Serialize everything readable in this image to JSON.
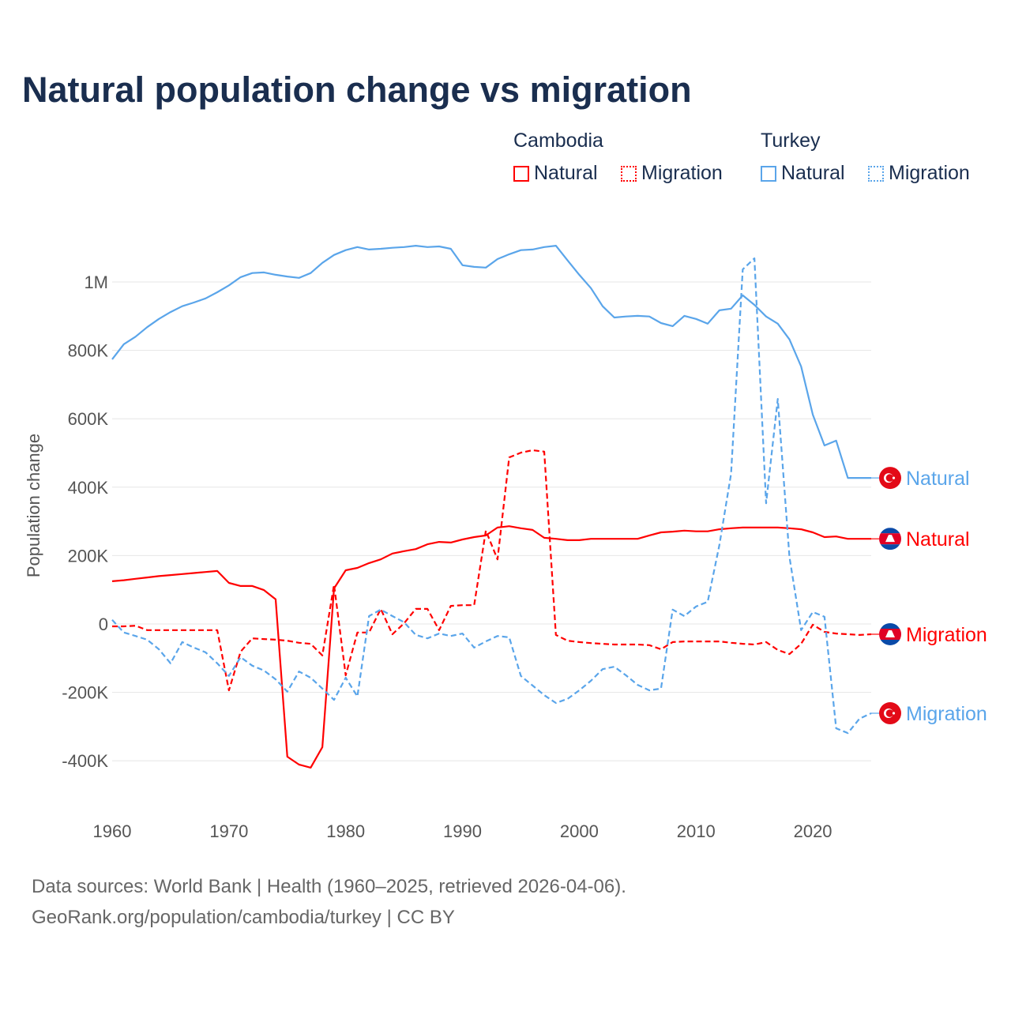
{
  "title": "Natural population change vs migration",
  "legend": {
    "groups": [
      {
        "name": "Cambodia",
        "items": [
          {
            "label": "Natural",
            "style": "solid"
          },
          {
            "label": "Migration",
            "style": "dotted"
          }
        ],
        "color": "#ff0000"
      },
      {
        "name": "Turkey",
        "items": [
          {
            "label": "Natural",
            "style": "solid"
          },
          {
            "label": "Migration",
            "style": "dotted"
          }
        ],
        "color": "#5aa5ea"
      }
    ]
  },
  "footer": {
    "line1": "Data sources: World Bank | Health (1960–2025, retrieved 2026-04-06).",
    "line2": "GeoRank.org/population/cambodia/turkey | CC BY"
  },
  "chart_data": {
    "type": "line",
    "title": "Natural population change vs migration",
    "xlabel": "",
    "ylabel": "Population change",
    "xlim": [
      1960,
      2025
    ],
    "ylim": [
      -400000,
      1100000
    ],
    "x_ticks": [
      1960,
      1970,
      1980,
      1990,
      2000,
      2010,
      2020
    ],
    "x_tick_labels": [
      "1960",
      "1970",
      "1980",
      "1990",
      "2000",
      "2010",
      "2020"
    ],
    "y_ticks": [
      -400000,
      -200000,
      0,
      200000,
      400000,
      600000,
      800000,
      1000000
    ],
    "y_tick_labels": [
      "-400K",
      "-200K",
      "0",
      "200K",
      "400K",
      "600K",
      "800K",
      "1M"
    ],
    "grid": true,
    "x_start": 1960,
    "series": [
      {
        "name": "Turkey Natural",
        "country": "Turkey",
        "end_label": "Natural",
        "color": "#5aa5ea",
        "dash": false,
        "flag": "turkey",
        "values": [
          774,
          818,
          840,
          868,
          892,
          912,
          929,
          940,
          952,
          970,
          990,
          1014,
          1026,
          1028,
          1021,
          1016,
          1012,
          1026,
          1056,
          1079,
          1093,
          1102,
          1095,
          1097,
          1100,
          1102,
          1106,
          1102,
          1104,
          1097,
          1049,
          1044,
          1042,
          1067,
          1081,
          1093,
          1095,
          1102,
          1106,
          1063,
          1021,
          982,
          929,
          896,
          899,
          901,
          899,
          880,
          871,
          901,
          892,
          878,
          917,
          922,
          961,
          933,
          899,
          878,
          832,
          753,
          612,
          522,
          536,
          427,
          427,
          427
        ]
      },
      {
        "name": "Cambodia Natural",
        "country": "Cambodia",
        "end_label": "Natural",
        "color": "#ff0000",
        "dash": false,
        "flag": "cambodia",
        "values": [
          125,
          128,
          132,
          136,
          140,
          143,
          146,
          149,
          152,
          155,
          120,
          111,
          111,
          99,
          72,
          -388,
          -411,
          -420,
          -360,
          104,
          157,
          164,
          178,
          189,
          206,
          213,
          219,
          233,
          240,
          238,
          247,
          254,
          259,
          282,
          286,
          280,
          275,
          252,
          249,
          245,
          245,
          249,
          249,
          249,
          249,
          249,
          259,
          268,
          270,
          273,
          271,
          271,
          277,
          280,
          282,
          282,
          282,
          282,
          280,
          277,
          268,
          254,
          256,
          249,
          249,
          249
        ]
      },
      {
        "name": "Cambodia Migration",
        "country": "Cambodia",
        "end_label": "Migration",
        "color": "#ff0000",
        "dash": true,
        "flag": "cambodia",
        "values": [
          -7,
          -7,
          -5,
          -18,
          -18,
          -18,
          -18,
          -18,
          -18,
          -18,
          -194,
          -81,
          -42,
          -44,
          -46,
          -49,
          -55,
          -58,
          -92,
          115,
          -150,
          -25,
          -25,
          44,
          -30,
          2,
          44,
          44,
          -18,
          53,
          55,
          55,
          273,
          189,
          487,
          501,
          508,
          504,
          -32,
          -49,
          -53,
          -56,
          -58,
          -60,
          -60,
          -60,
          -62,
          -74,
          -53,
          -51,
          -51,
          -51,
          -51,
          -55,
          -58,
          -60,
          -53,
          -76,
          -88,
          -58,
          -2,
          -23,
          -28,
          -30,
          -32,
          -30
        ]
      },
      {
        "name": "Turkey Migration",
        "country": "Turkey",
        "end_label": "Migration",
        "color": "#5aa5ea",
        "dash": true,
        "flag": "turkey",
        "values": [
          12,
          -25,
          -35,
          -46,
          -74,
          -115,
          -53,
          -69,
          -83,
          -115,
          -152,
          -97,
          -122,
          -136,
          -162,
          -198,
          -139,
          -157,
          -189,
          -222,
          -157,
          -212,
          23,
          42,
          23,
          5,
          -32,
          -42,
          -28,
          -35,
          -28,
          -69,
          -51,
          -35,
          -39,
          -152,
          -180,
          -208,
          -231,
          -219,
          -194,
          -166,
          -132,
          -125,
          -150,
          -178,
          -194,
          -189,
          42,
          23,
          51,
          65,
          231,
          439,
          1037,
          1069,
          353,
          658,
          196,
          -18,
          35,
          21,
          -305,
          -319,
          -277,
          -261
        ]
      }
    ],
    "value_unit": "thousands",
    "legend_placement": "top-right"
  }
}
